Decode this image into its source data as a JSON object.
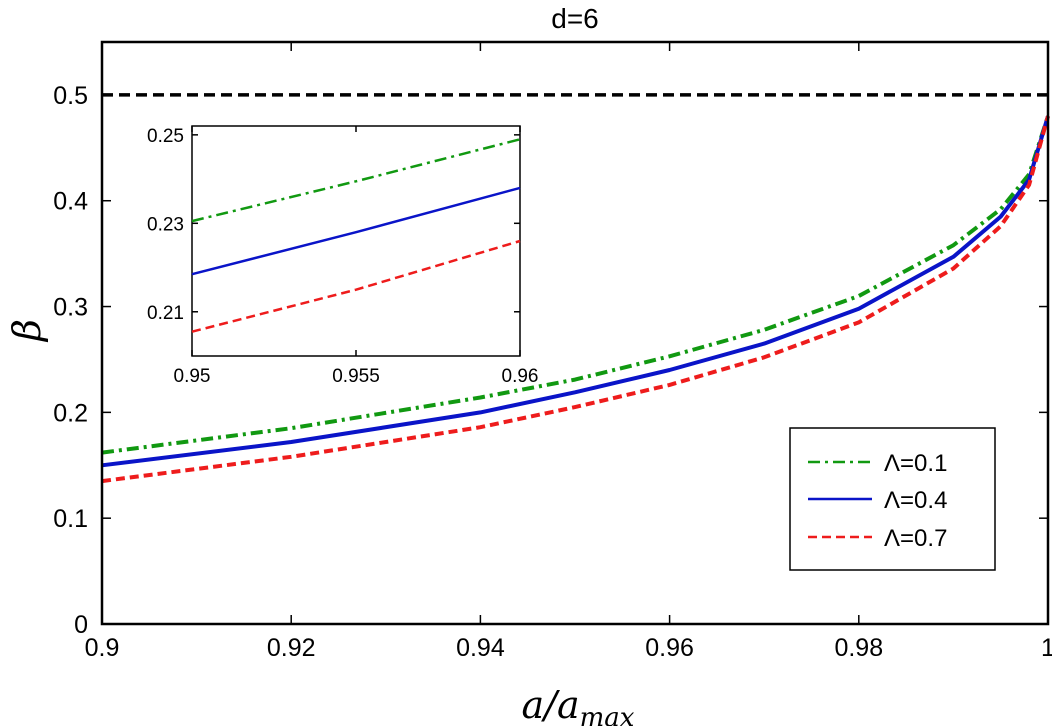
{
  "chart_data": [
    {
      "type": "line",
      "title": "d=6",
      "xlabel": "a/a",
      "xlabel_sub": "max",
      "ylabel": "β",
      "xlim": [
        0.9,
        1.0
      ],
      "ylim": [
        0,
        0.55
      ],
      "x_ticks": [
        0.9,
        0.92,
        0.94,
        0.96,
        0.98,
        1.0
      ],
      "x_tick_labels": [
        "0.9",
        "0.92",
        "0.94",
        "0.96",
        "0.98",
        "1"
      ],
      "y_ticks": [
        0,
        0.1,
        0.2,
        0.3,
        0.4,
        0.5
      ],
      "y_tick_labels": [
        "0",
        "0.1",
        "0.2",
        "0.3",
        "0.4",
        "0.5"
      ],
      "reference_line": {
        "y": 0.5,
        "style": "dashed",
        "color": "#000000"
      },
      "legend_position": "lower-right",
      "series": [
        {
          "name": "Λ=0.1",
          "color": "#119911",
          "style": "dashdot",
          "x": [
            0.9,
            0.92,
            0.94,
            0.95,
            0.96,
            0.97,
            0.98,
            0.99,
            0.995,
            0.998,
            1.0
          ],
          "y": [
            0.162,
            0.185,
            0.214,
            0.231,
            0.253,
            0.278,
            0.31,
            0.358,
            0.392,
            0.425,
            0.48
          ]
        },
        {
          "name": "Λ=0.4",
          "color": "#0a14c8",
          "style": "solid",
          "x": [
            0.9,
            0.92,
            0.94,
            0.95,
            0.96,
            0.97,
            0.98,
            0.99,
            0.995,
            0.998,
            1.0
          ],
          "y": [
            0.15,
            0.172,
            0.2,
            0.219,
            0.24,
            0.265,
            0.298,
            0.347,
            0.385,
            0.42,
            0.48
          ]
        },
        {
          "name": "Λ=0.7",
          "color": "#ee1c1c",
          "style": "dashed",
          "x": [
            0.9,
            0.92,
            0.94,
            0.95,
            0.96,
            0.97,
            0.98,
            0.99,
            0.995,
            0.998,
            1.0
          ],
          "y": [
            0.135,
            0.158,
            0.186,
            0.205,
            0.226,
            0.252,
            0.285,
            0.336,
            0.376,
            0.415,
            0.48
          ]
        }
      ]
    },
    {
      "type": "line",
      "xlim": [
        0.95,
        0.96
      ],
      "ylim": [
        0.2,
        0.252
      ],
      "x_ticks": [
        0.95,
        0.955,
        0.96
      ],
      "x_tick_labels": [
        "0.95",
        "0.955",
        "0.96"
      ],
      "y_ticks": [
        0.21,
        0.23,
        0.25
      ],
      "y_tick_labels": [
        "0.21",
        "0.23",
        "0.25"
      ],
      "series": [
        {
          "name": "Λ=0.1",
          "color": "#119911",
          "style": "dashdot",
          "x": [
            0.95,
            0.955,
            0.96
          ],
          "y": [
            0.2305,
            0.2395,
            0.249
          ]
        },
        {
          "name": "Λ=0.4",
          "color": "#0a14c8",
          "style": "solid",
          "x": [
            0.95,
            0.955,
            0.96
          ],
          "y": [
            0.2185,
            0.228,
            0.238
          ]
        },
        {
          "name": "Λ=0.7",
          "color": "#ee1c1c",
          "style": "dashed",
          "x": [
            0.95,
            0.955,
            0.96
          ],
          "y": [
            0.2055,
            0.215,
            0.226
          ]
        }
      ]
    }
  ]
}
